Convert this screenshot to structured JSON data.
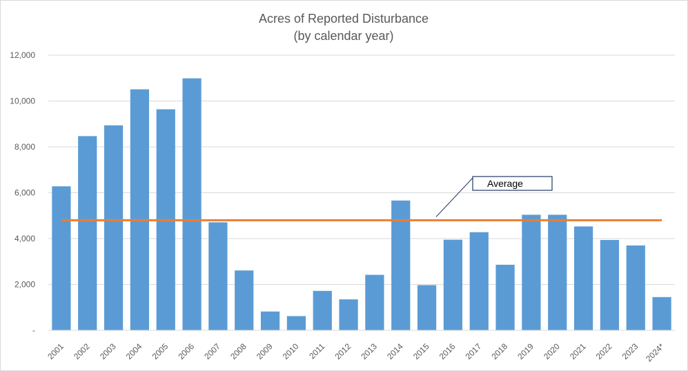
{
  "chart_data": {
    "type": "bar",
    "title": "Acres of Reported Disturbance",
    "subtitle": "(by calendar year)",
    "xlabel": "",
    "ylabel": "",
    "ylim": [
      0,
      12000
    ],
    "y_ticks": [
      0,
      2000,
      4000,
      6000,
      8000,
      10000,
      12000
    ],
    "y_tick_labels": [
      "-",
      "2,000",
      "4,000",
      "6,000",
      "8,000",
      "10,000",
      "12,000"
    ],
    "grid": true,
    "categories": [
      "2001",
      "2002",
      "2003",
      "2004",
      "2005",
      "2006",
      "2007",
      "2008",
      "2009",
      "2010",
      "2011",
      "2012",
      "2013",
      "2014",
      "2015",
      "2016",
      "2017",
      "2018",
      "2019",
      "2020",
      "2021",
      "2022",
      "2023",
      "2024*"
    ],
    "values": [
      6280,
      8470,
      8940,
      10510,
      9640,
      10990,
      4710,
      2610,
      820,
      620,
      1720,
      1350,
      2420,
      5660,
      1970,
      3950,
      4280,
      2860,
      5040,
      5040,
      4530,
      3940,
      3700,
      1450
    ],
    "bar_color": "#5b9bd5",
    "average": {
      "label": "Average",
      "value": 4800,
      "color": "#ed7d31"
    }
  }
}
